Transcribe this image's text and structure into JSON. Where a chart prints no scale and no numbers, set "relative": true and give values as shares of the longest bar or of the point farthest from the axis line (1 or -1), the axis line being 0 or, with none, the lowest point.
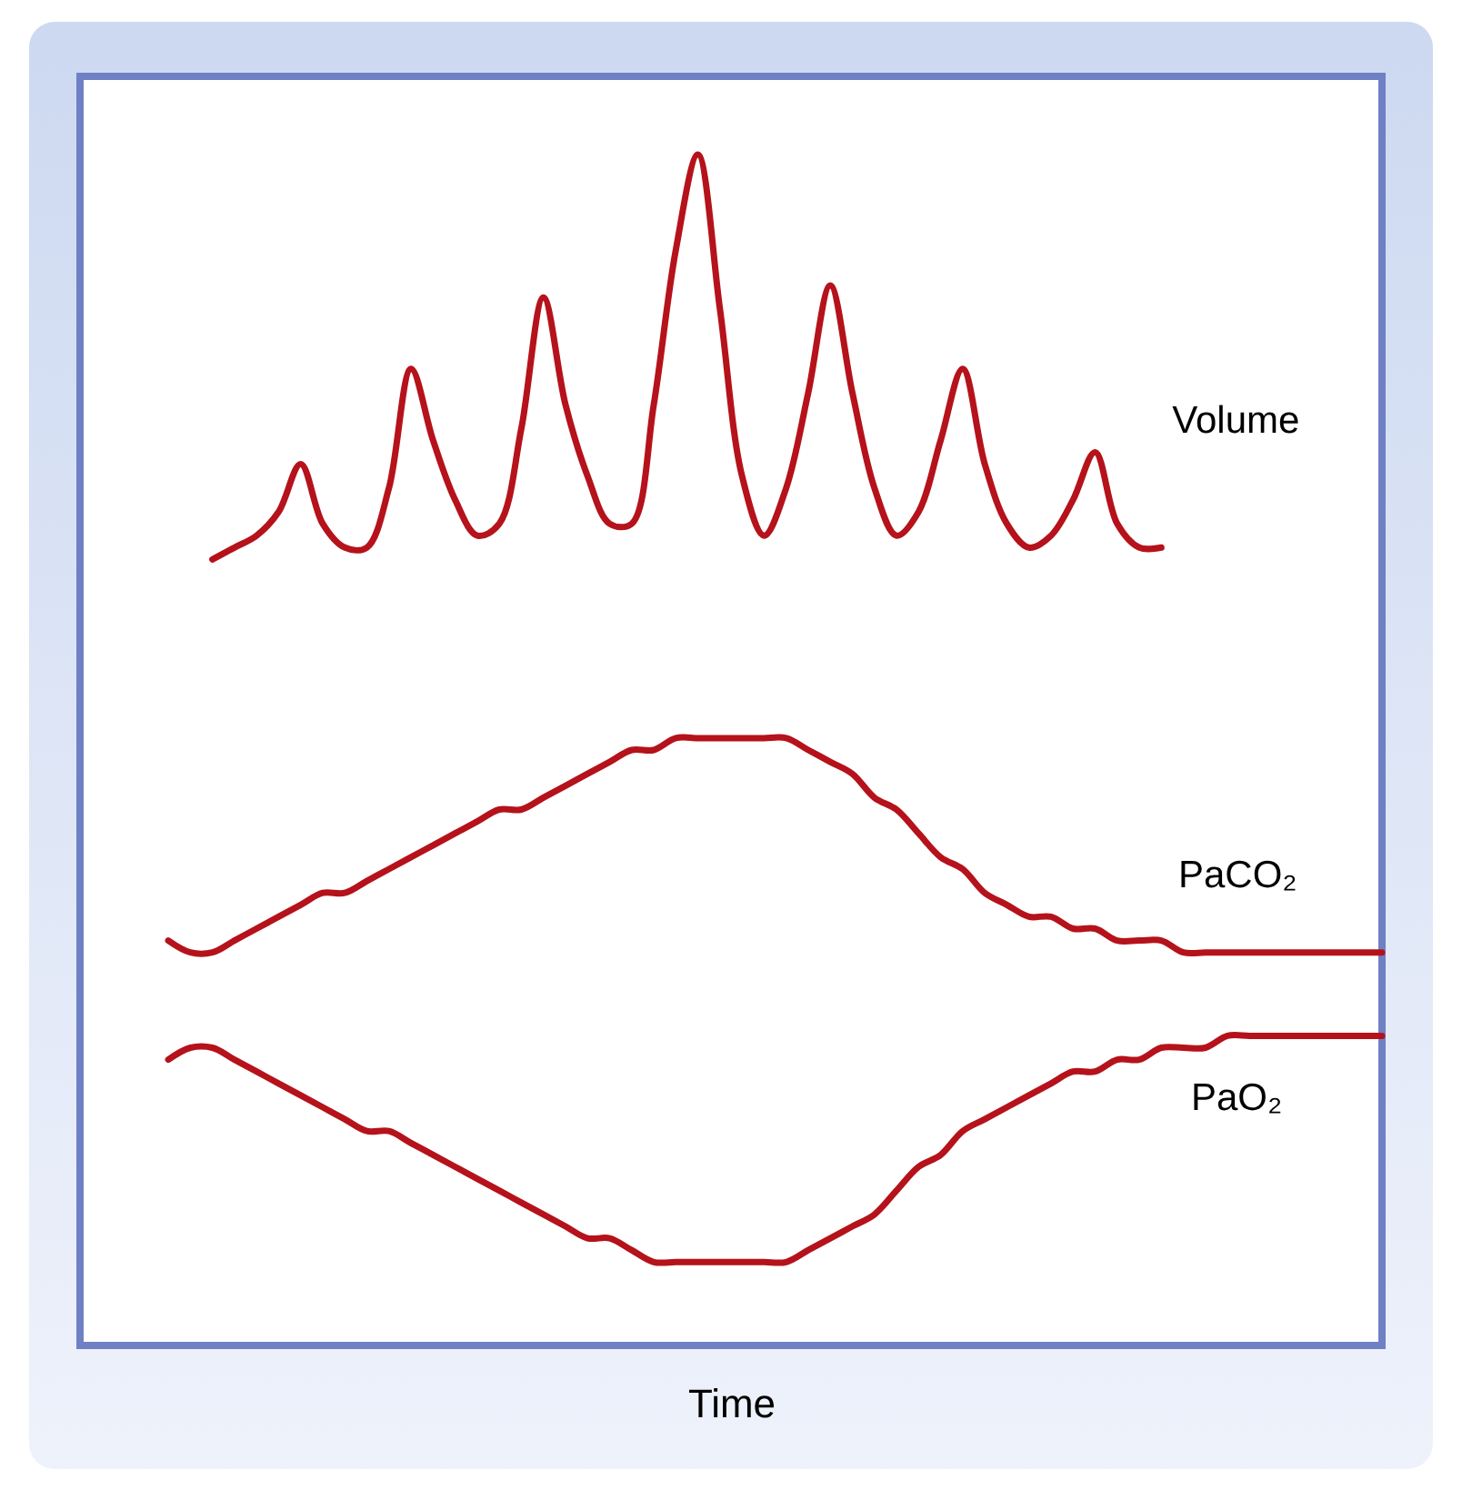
{
  "chart_data": {
    "type": "line",
    "relative": true,
    "xlabel": "Time",
    "grid": false,
    "legend": false,
    "marker": "none",
    "line_style": "solid",
    "categories": [
      null,
      null,
      null,
      null,
      null,
      null,
      null,
      null,
      null,
      null,
      null,
      null,
      null,
      null,
      null,
      null,
      null,
      null,
      null,
      null,
      null,
      null,
      null,
      null,
      null,
      null,
      null,
      null,
      null,
      null,
      null,
      null,
      null,
      null,
      null,
      null,
      null,
      null,
      null,
      null,
      null,
      null,
      null,
      null,
      null,
      null,
      null,
      null,
      null,
      null,
      null,
      null,
      null,
      null,
      null,
      null,
      null,
      null,
      null,
      null
    ],
    "series": [
      {
        "name": "Volume",
        "color": "#b5121b",
        "values": [
          null,
          null,
          null,
          null,
          null,
          null,
          0.66,
          0.67,
          0.68,
          0.7,
          0.74,
          0.69,
          0.67,
          0.67,
          0.72,
          0.82,
          0.76,
          0.71,
          0.68,
          0.69,
          0.77,
          0.88,
          0.79,
          0.73,
          0.69,
          0.69,
          0.79,
          0.92,
          1,
          0.87,
          0.73,
          0.68,
          0.72,
          0.8,
          0.89,
          0.8,
          0.72,
          0.68,
          0.7,
          0.76,
          0.82,
          0.74,
          0.69,
          0.67,
          0.68,
          0.71,
          0.75,
          0.69,
          0.67,
          0.67,
          null,
          null,
          null,
          null,
          null,
          null,
          null,
          null,
          null,
          null
        ]
      },
      {
        "name": "PaCO₂",
        "color": "#b5121b",
        "values": [
          null,
          null,
          null,
          null,
          0.34,
          0.33,
          0.33,
          0.34,
          0.35,
          0.36,
          0.37,
          0.38,
          0.38,
          0.39,
          0.4,
          0.41,
          0.42,
          0.43,
          0.44,
          0.45,
          0.45,
          0.46,
          0.47,
          0.48,
          0.49,
          0.5,
          0.5,
          0.51,
          0.51,
          0.51,
          0.51,
          0.51,
          0.51,
          0.5,
          0.49,
          0.48,
          0.46,
          0.45,
          0.43,
          0.41,
          0.4,
          0.38,
          0.37,
          0.36,
          0.36,
          0.35,
          0.35,
          0.34,
          0.34,
          0.34,
          0.33,
          0.33,
          0.33,
          0.33,
          0.33,
          0.33,
          0.33,
          0.33,
          0.33,
          0.33
        ]
      },
      {
        "name": "PaO₂",
        "color": "#b5121b",
        "values": [
          null,
          null,
          null,
          null,
          0.24,
          0.25,
          0.25,
          0.24,
          0.23,
          0.22,
          0.21,
          0.2,
          0.19,
          0.18,
          0.18,
          0.17,
          0.16,
          0.15,
          0.14,
          0.13,
          0.12,
          0.11,
          0.1,
          0.09,
          0.09,
          0.08,
          0.07,
          0.07,
          0.07,
          0.07,
          0.07,
          0.07,
          0.07,
          0.08,
          0.09,
          0.1,
          0.11,
          0.13,
          0.15,
          0.16,
          0.18,
          0.19,
          0.2,
          0.21,
          0.22,
          0.23,
          0.23,
          0.24,
          0.24,
          0.25,
          0.25,
          0.25,
          0.26,
          0.26,
          0.26,
          0.26,
          0.26,
          0.26,
          0.26,
          0.26
        ]
      }
    ]
  }
}
